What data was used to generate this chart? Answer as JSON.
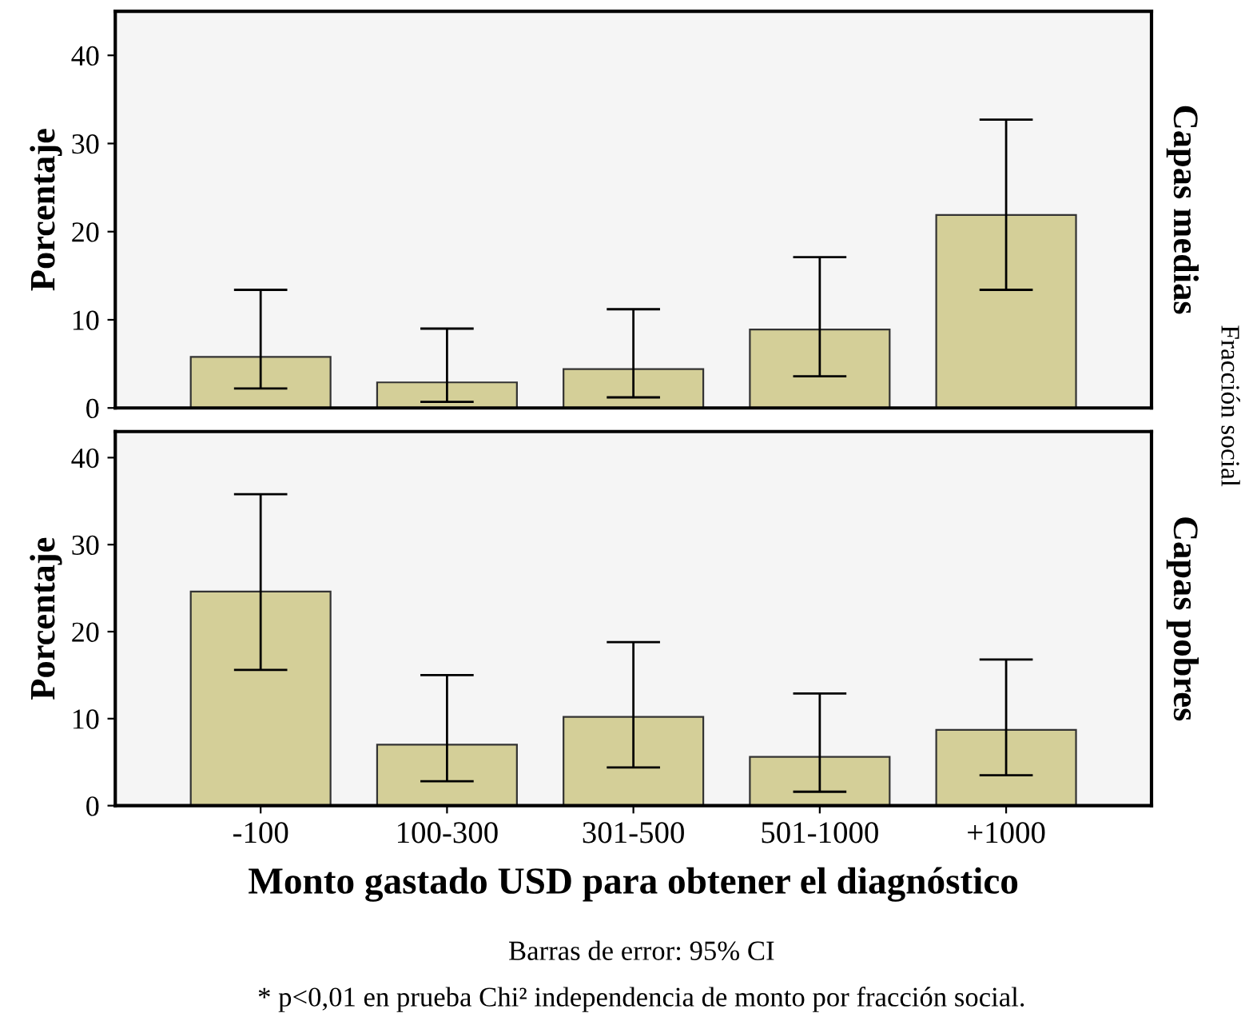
{
  "chart_data": [
    {
      "type": "bar",
      "ylabel": "Porcentaje",
      "categories": [
        null,
        null,
        null,
        null,
        null
      ],
      "series": [
        {
          "color": "#d4cf98",
          "values": [
            5.8,
            2.9,
            4.4,
            8.9,
            21.9
          ],
          "errors": [
            [
              2.2,
              13.4
            ],
            [
              0.7,
              9.0
            ],
            [
              1.2,
              11.2
            ],
            [
              3.6,
              17.1
            ],
            [
              13.4,
              32.7
            ]
          ]
        }
      ],
      "ylim": [
        0,
        45
      ],
      "yticks": [
        0,
        10,
        20,
        30,
        40
      ],
      "grid": false,
      "legend": false,
      "tick_labels": "y",
      "annotations": [
        "Capas medias",
        "Fracción social"
      ]
    },
    {
      "type": "bar",
      "ylabel": "Porcentaje",
      "xlabel": "Monto gastado USD para obtener el diagnóstico",
      "categories": [
        "-100",
        "100-300",
        "301-500",
        "501-1000",
        "+1000"
      ],
      "series": [
        {
          "color": "#d4cf98",
          "values": [
            24.6,
            7.0,
            10.2,
            5.6,
            8.7
          ],
          "errors": [
            [
              15.6,
              35.8
            ],
            [
              2.8,
              15.0
            ],
            [
              4.4,
              18.8
            ],
            [
              1.6,
              12.9
            ],
            [
              3.5,
              16.8
            ]
          ]
        }
      ],
      "ylim": [
        0,
        43
      ],
      "yticks": [
        0,
        10,
        20,
        30,
        40
      ],
      "grid": false,
      "legend": false,
      "annotations": [
        "Capas pobres",
        "Barras de error: 95% CI",
        "* p<0,01 en prueba Chi² independencia de monto por fracción social."
      ]
    }
  ]
}
